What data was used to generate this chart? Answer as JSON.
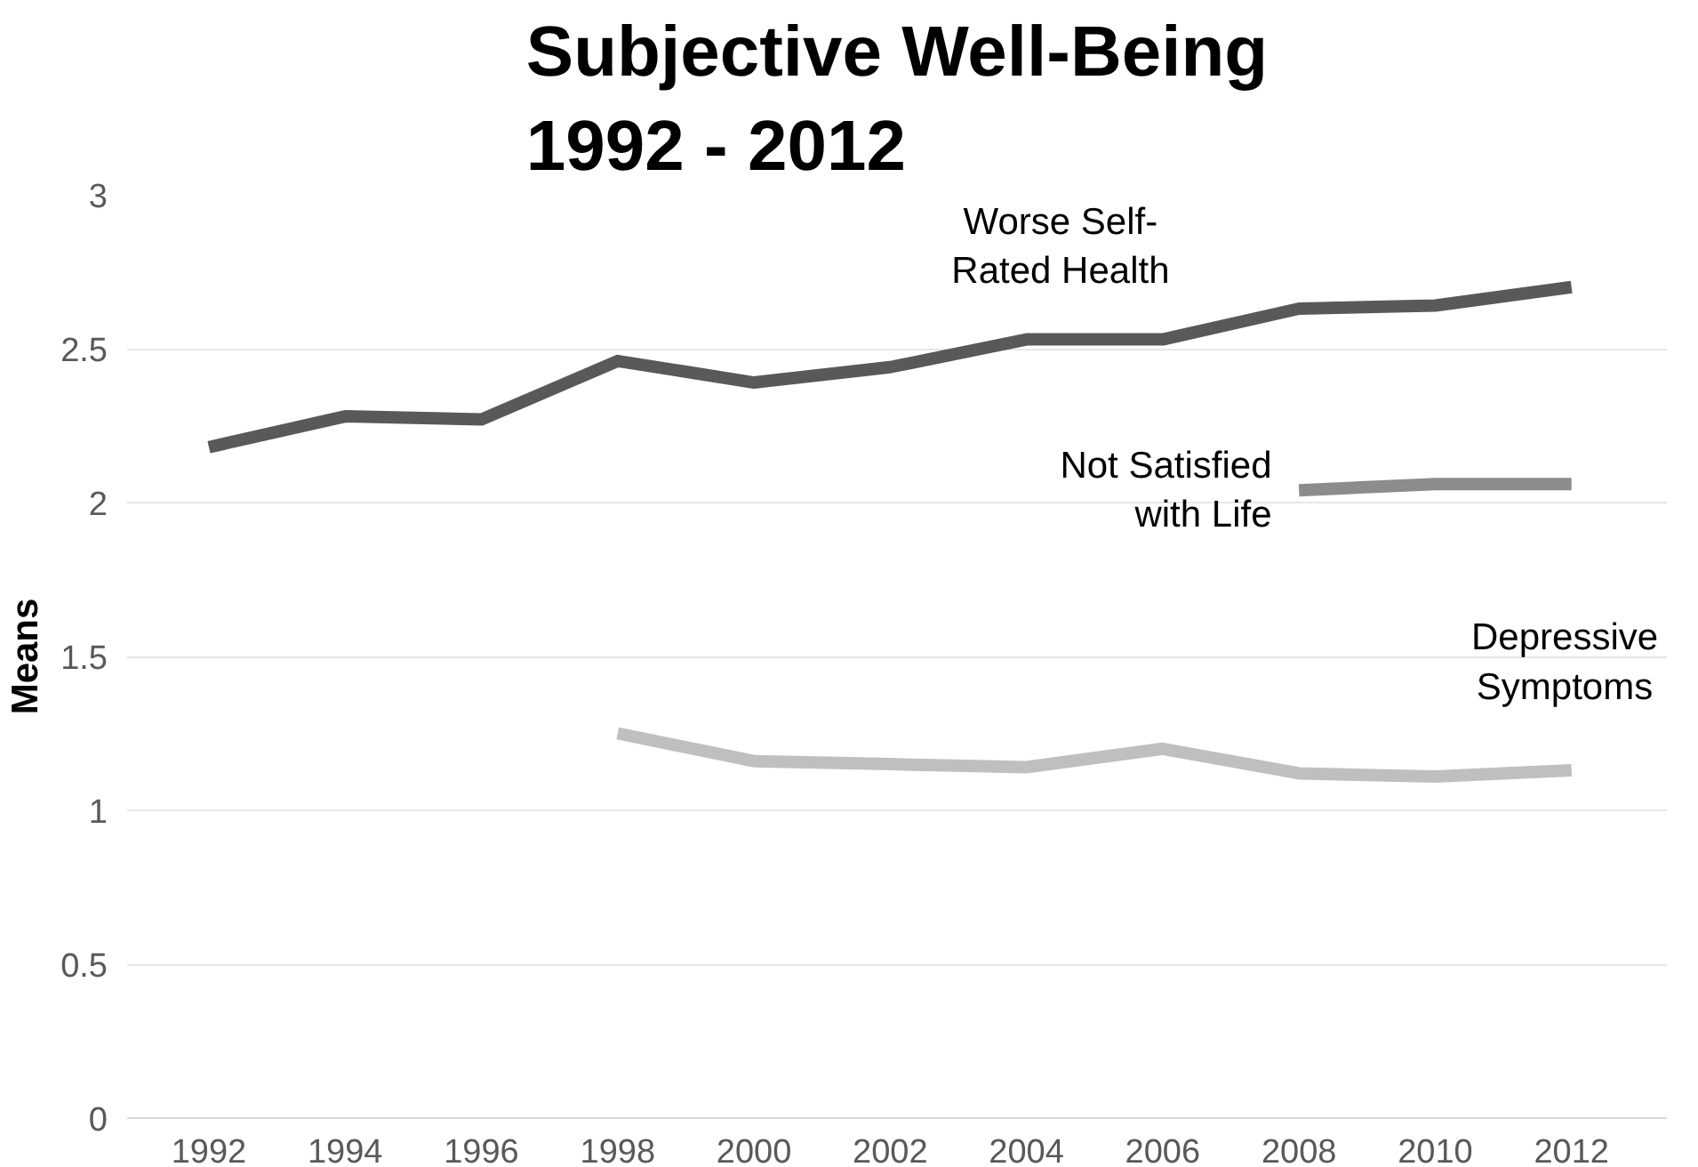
{
  "chart_data": {
    "type": "line",
    "title": "Subjective Well-Being\n1992 - 2012",
    "ylabel": "Means",
    "categories": [
      "1992",
      "1994",
      "1996",
      "1998",
      "2000",
      "2002",
      "2004",
      "2006",
      "2008",
      "2010",
      "2012"
    ],
    "ylim": [
      0,
      3
    ],
    "yticks": [
      0,
      0.5,
      1,
      1.5,
      2,
      2.5,
      3
    ],
    "grid": "y",
    "marker": "none",
    "line_style": "solid",
    "series": [
      {
        "name": "Worse Self-\nRated Health",
        "color": "#595959",
        "values": [
          2.18,
          2.28,
          2.27,
          2.46,
          2.39,
          2.44,
          2.53,
          2.53,
          2.63,
          2.64,
          2.7
        ]
      },
      {
        "name": "Not Satisfied\nwith Life",
        "color": "#8c8c8c",
        "values": [
          null,
          null,
          null,
          null,
          null,
          null,
          null,
          null,
          2.04,
          2.06,
          2.06
        ]
      },
      {
        "name": "Depressive\nSymptoms",
        "color": "#bfbfbf",
        "values": [
          null,
          null,
          null,
          1.25,
          1.16,
          1.15,
          1.14,
          1.2,
          1.12,
          1.11,
          1.13
        ]
      }
    ]
  }
}
